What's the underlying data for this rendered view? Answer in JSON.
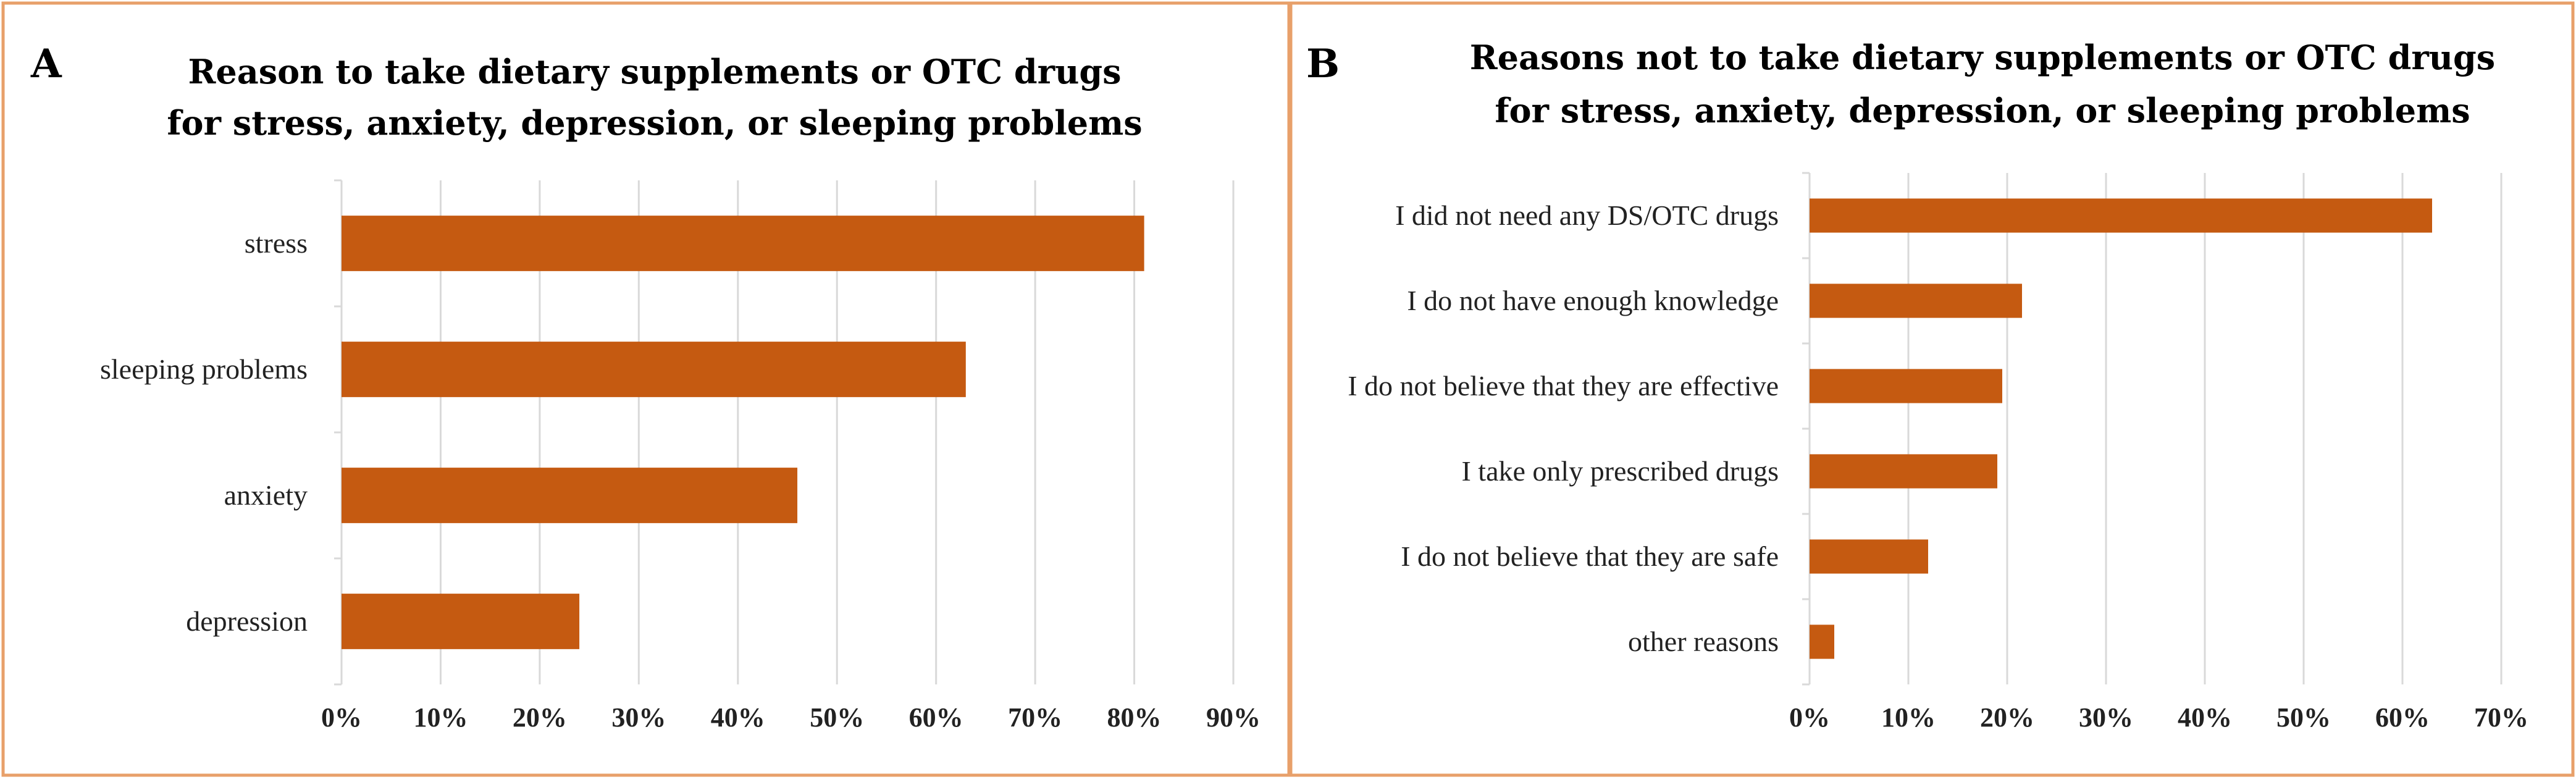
{
  "colors": {
    "bar": "#c55a11",
    "frame": "#e8a06a",
    "grid": "#d9d9d9"
  },
  "chart_data": [
    {
      "type": "bar",
      "orientation": "horizontal",
      "panel_label": "A",
      "title_lines": [
        "Reason to take dietary supplements or OTC drugs",
        "for stress, anxiety, depression, or sleeping problems"
      ],
      "categories": [
        "stress",
        "sleeping problems",
        "anxiety",
        "depression"
      ],
      "values": [
        81,
        63,
        46,
        24
      ],
      "unit": "%",
      "xlim": [
        0,
        90
      ],
      "xticks": [
        "0%",
        "10%",
        "20%",
        "30%",
        "40%",
        "50%",
        "60%",
        "70%",
        "80%",
        "90%"
      ],
      "grid": true,
      "legend": "none"
    },
    {
      "type": "bar",
      "orientation": "horizontal",
      "panel_label": "B",
      "title_lines": [
        "Reasons not to take dietary supplements or OTC drugs",
        "for stress, anxiety, depression, or sleeping problems"
      ],
      "categories": [
        "I did not need any DS/OTC drugs",
        "I do not have enough knowledge",
        "I do not believe that they are effective",
        "I take only prescribed drugs",
        "I do not believe that they are safe",
        "other reasons"
      ],
      "values": [
        63,
        21.5,
        19.5,
        19,
        12,
        2.5
      ],
      "unit": "%",
      "xlim": [
        0,
        70
      ],
      "xticks": [
        "0%",
        "10%",
        "20%",
        "30%",
        "40%",
        "50%",
        "60%",
        "70%"
      ],
      "grid": true,
      "legend": "none"
    }
  ]
}
